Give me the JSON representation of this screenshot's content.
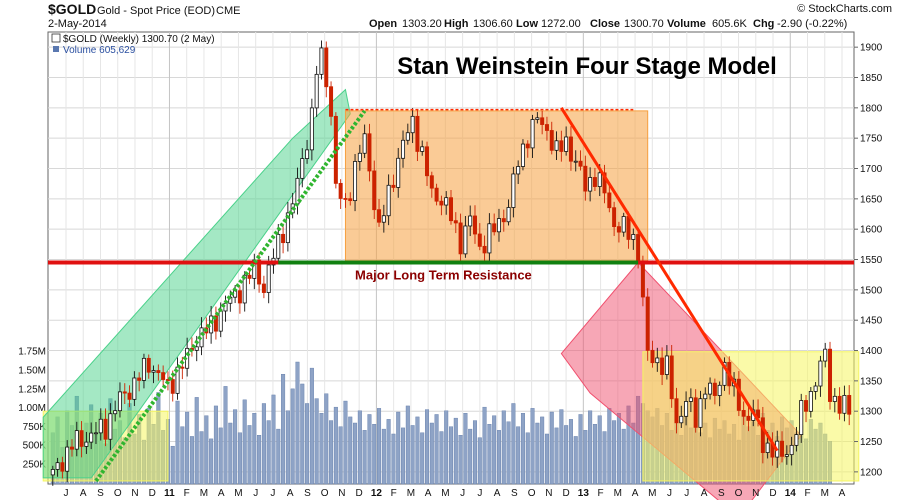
{
  "header": {
    "symbol": "$GOLD",
    "description": "Gold - Spot Price (EOD)",
    "exchange": "CME",
    "date": "2-May-2014",
    "source": "© StockCharts.com",
    "open_label": "Open",
    "open": "1303.20",
    "high_label": "High",
    "high": "1306.60",
    "low_label": "Low",
    "low": "1272.00",
    "close_label": "Close",
    "close": "1300.70",
    "volume_label": "Volume",
    "volume": "605.6K",
    "chg_label": "Chg",
    "chg": "-2.90 (-0.22%)"
  },
  "legend": {
    "price": "$GOLD (Weekly) 1300.70 (2 May)",
    "volume": "Volume 605,629"
  },
  "colors": {
    "stage1": "#f5f560",
    "stage2": "#4ad18a",
    "stage3": "#f6a040",
    "stage4": "#f0506e",
    "resistance": "#e01010",
    "resistance_overlap": "#108010",
    "trend_down": "#ff2a00",
    "trend_up": "#2fb52f",
    "volume_bar": "#8ea3c6",
    "candle_up": "#111111",
    "candle_down": "#cc2200"
  },
  "chart_data": {
    "type": "candlestick",
    "title": "Stan Weinstein Four Stage Model",
    "annotation": "Major Long Term Resistance",
    "resistance_level": 1545,
    "ylim": [
      1180,
      1925
    ],
    "y_ticks": [
      1200,
      1250,
      1300,
      1350,
      1400,
      1450,
      1500,
      1550,
      1600,
      1650,
      1700,
      1750,
      1800,
      1850,
      1900
    ],
    "volume_ticks": [
      "250K",
      "500K",
      "750K",
      "1.00M",
      "1.25M",
      "1.50M",
      "1.75M"
    ],
    "x_ticks": [
      "J",
      "A",
      "S",
      "O",
      "N",
      "D",
      "11",
      "F",
      "M",
      "A",
      "M",
      "J",
      "J",
      "A",
      "S",
      "O",
      "N",
      "D",
      "12",
      "F",
      "M",
      "A",
      "M",
      "J",
      "J",
      "A",
      "S",
      "O",
      "N",
      "D",
      "13",
      "F",
      "M",
      "A",
      "M",
      "J",
      "J",
      "A",
      "S",
      "O",
      "N",
      "D",
      "14",
      "F",
      "M",
      "A"
    ],
    "x_ticks_bold": [
      "11",
      "12",
      "13",
      "14"
    ],
    "price_path": [
      [
        0,
        1195
      ],
      [
        4,
        1245
      ],
      [
        8,
        1260
      ],
      [
        11,
        1275
      ],
      [
        14,
        1320
      ],
      [
        17,
        1345
      ],
      [
        20,
        1380
      ],
      [
        24,
        1340
      ],
      [
        27,
        1375
      ],
      [
        30,
        1420
      ],
      [
        33,
        1440
      ],
      [
        36,
        1475
      ],
      [
        39,
        1500
      ],
      [
        42,
        1535
      ],
      [
        44,
        1505
      ],
      [
        46,
        1555
      ],
      [
        48,
        1600
      ],
      [
        50,
        1640
      ],
      [
        52,
        1715
      ],
      [
        54,
        1785
      ],
      [
        55,
        1860
      ],
      [
        56,
        1885
      ],
      [
        57,
        1850
      ],
      [
        58,
        1790
      ],
      [
        59,
        1665
      ],
      [
        61,
        1640
      ],
      [
        63,
        1700
      ],
      [
        65,
        1750
      ],
      [
        66,
        1700
      ],
      [
        68,
        1595
      ],
      [
        70,
        1660
      ],
      [
        72,
        1715
      ],
      [
        74,
        1760
      ],
      [
        75,
        1780
      ],
      [
        77,
        1720
      ],
      [
        79,
        1660
      ],
      [
        81,
        1650
      ],
      [
        83,
        1620
      ],
      [
        85,
        1580
      ],
      [
        87,
        1615
      ],
      [
        89,
        1570
      ],
      [
        91,
        1590
      ],
      [
        93,
        1610
      ],
      [
        95,
        1640
      ],
      [
        97,
        1710
      ],
      [
        99,
        1755
      ],
      [
        101,
        1780
      ],
      [
        103,
        1765
      ],
      [
        105,
        1725
      ],
      [
        107,
        1745
      ],
      [
        109,
        1710
      ],
      [
        111,
        1670
      ],
      [
        113,
        1690
      ],
      [
        115,
        1660
      ],
      [
        117,
        1610
      ],
      [
        119,
        1600
      ],
      [
        121,
        1585
      ],
      [
        122,
        1560
      ],
      [
        123,
        1480
      ],
      [
        124,
        1390
      ],
      [
        126,
        1385
      ],
      [
        128,
        1370
      ],
      [
        130,
        1280
      ],
      [
        132,
        1320
      ],
      [
        134,
        1285
      ],
      [
        136,
        1345
      ],
      [
        138,
        1320
      ],
      [
        140,
        1380
      ],
      [
        142,
        1330
      ],
      [
        144,
        1290
      ],
      [
        146,
        1300
      ],
      [
        148,
        1245
      ],
      [
        150,
        1240
      ],
      [
        152,
        1225
      ],
      [
        154,
        1245
      ],
      [
        156,
        1295
      ],
      [
        158,
        1330
      ],
      [
        160,
        1375
      ],
      [
        161,
        1390
      ],
      [
        162,
        1330
      ],
      [
        164,
        1310
      ],
      [
        166,
        1300
      ]
    ],
    "volume_levels": [
      0.42,
      0.55,
      0.3,
      0.6,
      0.48,
      0.72,
      0.35,
      0.5,
      0.65,
      0.4,
      0.58,
      0.33,
      0.7,
      0.45,
      0.52,
      0.38,
      0.66,
      0.41,
      0.57,
      0.36,
      0.62,
      0.49,
      0.75,
      0.44,
      0.53,
      0.31,
      0.68,
      0.47,
      0.59,
      0.39,
      0.71,
      0.43,
      0.56,
      0.37,
      0.64,
      0.46,
      0.8,
      0.5,
      0.61,
      0.42,
      0.69,
      0.48,
      0.58,
      0.4,
      0.66,
      0.52,
      0.73,
      0.45,
      0.9,
      0.6,
      0.78,
      1.0,
      0.82,
      0.66,
      0.95,
      0.7,
      0.58,
      0.74,
      0.52,
      0.63,
      0.47,
      0.68,
      0.55,
      0.5,
      0.6,
      0.44,
      0.57,
      0.49,
      0.62,
      0.45,
      0.53,
      0.41,
      0.59,
      0.46,
      0.64,
      0.48,
      0.55,
      0.42,
      0.61,
      0.5,
      0.57,
      0.43,
      0.6,
      0.47,
      0.54,
      0.4,
      0.58,
      0.45,
      0.52,
      0.38,
      0.63,
      0.49,
      0.56,
      0.44,
      0.6,
      0.51,
      0.66,
      0.47,
      0.58,
      0.42,
      0.62,
      0.5,
      0.55,
      0.41,
      0.59,
      0.46,
      0.61,
      0.48,
      0.53,
      0.39,
      0.57,
      0.44,
      0.6,
      0.49,
      0.56,
      0.43,
      0.62,
      0.52,
      0.58,
      0.45,
      0.64,
      0.5,
      0.72,
      0.66,
      0.6,
      0.55,
      0.62,
      0.48,
      0.58,
      0.44,
      0.53,
      0.4,
      0.57,
      0.46,
      0.55,
      0.42,
      0.5,
      0.38,
      0.54,
      0.45,
      0.52,
      0.41,
      0.49,
      0.36,
      0.56,
      0.47,
      0.51,
      0.4,
      0.58,
      0.44,
      0.5,
      0.39,
      0.55,
      0.46,
      0.52,
      0.42,
      0.48,
      0.37,
      0.53,
      0.45,
      0.5,
      0.41,
      0.35
    ],
    "stages": [
      {
        "stage": 1,
        "box": {
          "x0": -2,
          "x1": 24,
          "y0": 1300,
          "y1": 1185
        }
      },
      {
        "stage": 2,
        "poly": [
          [
            -2,
            1290
          ],
          [
            50,
            1750
          ],
          [
            61,
            1830
          ],
          [
            62,
            1790
          ],
          [
            8,
            1190
          ],
          [
            -2,
            1190
          ]
        ]
      },
      {
        "stage": 3,
        "box": {
          "x0": 61,
          "x1": 124,
          "y0": 1795,
          "y1": 1548
        }
      },
      {
        "stage": 4,
        "poly": [
          [
            106,
            1395
          ],
          [
            122,
            1545
          ],
          [
            131,
            1470
          ],
          [
            156,
            1260
          ],
          [
            143,
            1125
          ],
          [
            112,
            1330
          ]
        ]
      },
      {
        "stage": 1,
        "box": {
          "x0": 123,
          "x1": 168,
          "y0": 1398,
          "y1": 1185
        }
      }
    ]
  }
}
